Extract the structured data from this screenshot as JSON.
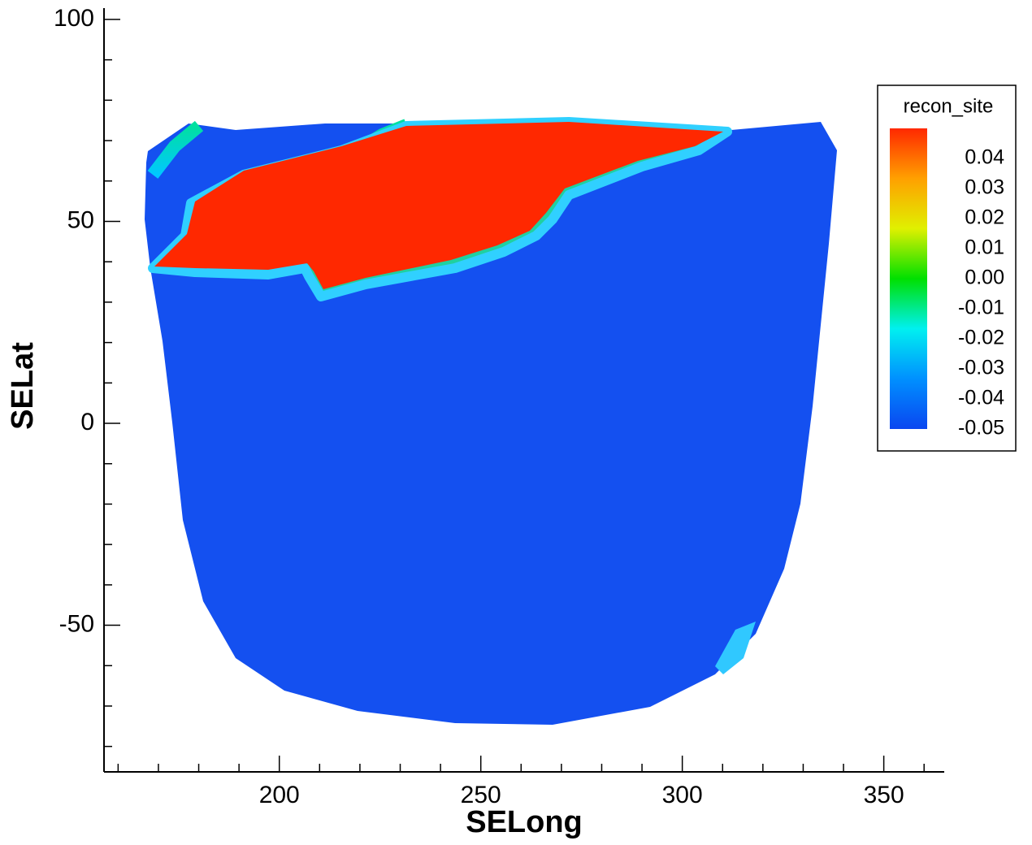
{
  "chart_data": {
    "type": "contour",
    "xlabel": "SELong",
    "ylabel": "SELat",
    "xlim": [
      156.5,
      365
    ],
    "ylim": [
      -86.3,
      102.8
    ],
    "xticks": [
      200,
      250,
      300,
      350
    ],
    "yticks": [
      -50,
      0,
      50,
      100
    ],
    "xminor": [
      160,
      170,
      180,
      190,
      210,
      220,
      230,
      240,
      260,
      270,
      280,
      290,
      310,
      320,
      330,
      340,
      360
    ],
    "yminor": [
      -80,
      -70,
      -60,
      -40,
      -30,
      -20,
      -10,
      10,
      20,
      30,
      40,
      60,
      70,
      80,
      90
    ],
    "legend": {
      "title": "recon_site",
      "clim": [
        -0.05,
        0.05
      ],
      "colormap": [
        "#0a46f0",
        "#0090ff",
        "#00f0f0",
        "#00e000",
        "#e0f000",
        "#ffa000",
        "#ff2800"
      ],
      "levels": [
        0.04,
        0.03,
        0.02,
        0.01,
        {
          "value": 0,
          "label": "0.00"
        },
        -0.01,
        -0.02,
        -0.03,
        -0.04,
        -0.05
      ]
    }
  }
}
